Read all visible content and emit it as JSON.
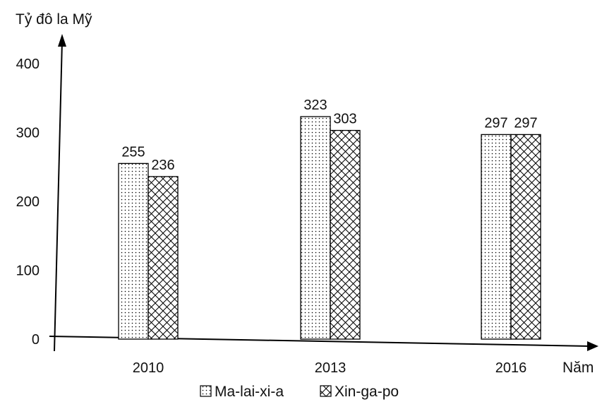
{
  "chart_data": {
    "type": "bar",
    "title": "",
    "ylabel": "Tỷ đô la Mỹ",
    "xlabel": "Năm",
    "categories": [
      "2010",
      "2013",
      "2016"
    ],
    "series": [
      {
        "name": "Ma-lai-xi-a",
        "values": [
          255,
          323,
          297
        ],
        "labels": [
          "255",
          "323",
          "297"
        ],
        "pattern": "dots"
      },
      {
        "name": "Xin-ga-po",
        "values": [
          236,
          303,
          297
        ],
        "labels": [
          "236",
          "303",
          "297"
        ],
        "pattern": "crosshatch"
      }
    ],
    "yticks": [
      "0",
      "100",
      "200",
      "300",
      "400"
    ],
    "ylim": [
      0,
      400
    ],
    "grid": false,
    "legend_position": "bottom-center",
    "colors": {
      "axis": "#000000",
      "bar_fill": "#ffffff",
      "pattern": "#000000"
    }
  }
}
